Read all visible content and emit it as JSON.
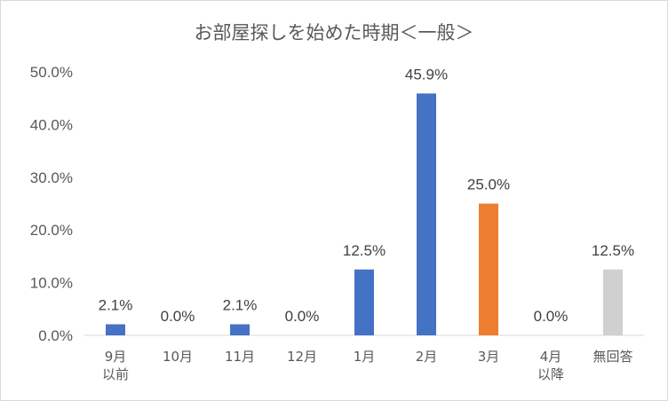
{
  "chart_data": {
    "type": "bar",
    "title": "お部屋探しを始めた時期＜一般＞",
    "categories": [
      [
        "9月",
        "以前"
      ],
      [
        "10月"
      ],
      [
        "11月"
      ],
      [
        "12月"
      ],
      [
        "1月"
      ],
      [
        "2月"
      ],
      [
        "3月"
      ],
      [
        "4月",
        "以降"
      ],
      [
        "無回答"
      ]
    ],
    "values": [
      2.1,
      0.0,
      2.1,
      0.0,
      12.5,
      45.9,
      25.0,
      0.0,
      12.5
    ],
    "data_labels": [
      "2.1%",
      "0.0%",
      "2.1%",
      "0.0%",
      "12.5%",
      "45.9%",
      "25.0%",
      "0.0%",
      "12.5%"
    ],
    "bar_colors": [
      "#4472c4",
      "#4472c4",
      "#4472c4",
      "#4472c4",
      "#4472c4",
      "#4472c4",
      "#ed7d31",
      "#4472c4",
      "#d0d0d0"
    ],
    "ylim": [
      0,
      50
    ],
    "yticks": [
      "0.0%",
      "10.0%",
      "20.0%",
      "30.0%",
      "40.0%",
      "50.0%"
    ],
    "grid": false,
    "legend": "none"
  }
}
